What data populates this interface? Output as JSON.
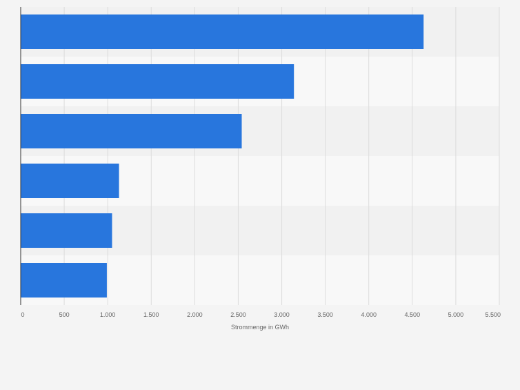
{
  "chart_data": {
    "type": "bar",
    "orientation": "horizontal",
    "categories": [
      "",
      "",
      "",
      "",
      "",
      ""
    ],
    "values": [
      4630,
      3140,
      2540,
      1130,
      1050,
      990
    ],
    "xlabel": "Strommenge in GWh",
    "ylabel": "",
    "xlim": [
      0,
      5500
    ],
    "ticks": [
      {
        "value": 0,
        "label": "0"
      },
      {
        "value": 500,
        "label": "500"
      },
      {
        "value": 1000,
        "label": "1.000"
      },
      {
        "value": 1500,
        "label": "1.500"
      },
      {
        "value": 2000,
        "label": "2.000"
      },
      {
        "value": 2500,
        "label": "2.500"
      },
      {
        "value": 3000,
        "label": "3.000"
      },
      {
        "value": 3500,
        "label": "3.500"
      },
      {
        "value": 4000,
        "label": "4.000"
      },
      {
        "value": 4500,
        "label": "4.500"
      },
      {
        "value": 5000,
        "label": "5.000"
      },
      {
        "value": 5500,
        "label": "5.500"
      }
    ],
    "grid": true,
    "legend": "none",
    "colors": {
      "bar": "#2876dd",
      "band_dark": "#f1f1f1",
      "band_light": "#f8f8f8",
      "grid": "#dcdcdc",
      "axis": "#333333",
      "tick_text": "#666666",
      "background": "#f4f4f4"
    }
  }
}
